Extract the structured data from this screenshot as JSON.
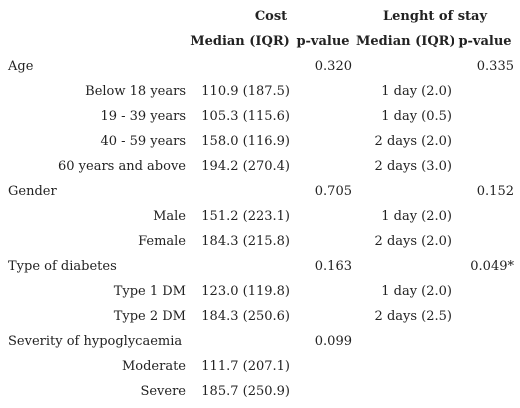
{
  "header": {
    "cost": "Cost",
    "los": "Lenght of stay",
    "median_iqr": "Median (IQR)",
    "p_value": "p-value"
  },
  "rows": [
    {
      "kind": "cat",
      "label": "Age",
      "cost_med": "",
      "cost_p": "0.320",
      "los_med": "",
      "los_p": "0.335"
    },
    {
      "kind": "sub",
      "label": "Below 18 years",
      "cost_med": "110.9 (187.5)",
      "cost_p": "",
      "los_med": "1 day (2.0)",
      "los_p": ""
    },
    {
      "kind": "sub",
      "label": "19 - 39 years",
      "cost_med": "105.3 (115.6)",
      "cost_p": "",
      "los_med": "1 day (0.5)",
      "los_p": ""
    },
    {
      "kind": "sub",
      "label": "40 - 59 years",
      "cost_med": "158.0 (116.9)",
      "cost_p": "",
      "los_med": "2 days (2.0)",
      "los_p": ""
    },
    {
      "kind": "sub",
      "label": "60 years and above",
      "cost_med": "194.2 (270.4)",
      "cost_p": "",
      "los_med": "2 days (3.0)",
      "los_p": ""
    },
    {
      "kind": "cat",
      "label": "Gender",
      "cost_med": "",
      "cost_p": "0.705",
      "los_med": "",
      "los_p": "0.152"
    },
    {
      "kind": "sub",
      "label": "Male",
      "cost_med": "151.2 (223.1)",
      "cost_p": "",
      "los_med": "1 day (2.0)",
      "los_p": ""
    },
    {
      "kind": "sub",
      "label": "Female",
      "cost_med": "184.3 (215.8)",
      "cost_p": "",
      "los_med": "2 days (2.0)",
      "los_p": ""
    },
    {
      "kind": "cat",
      "label": "Type of diabetes",
      "cost_med": "",
      "cost_p": "0.163",
      "los_med": "",
      "los_p": "0.049*"
    },
    {
      "kind": "sub",
      "label": "Type 1 DM",
      "cost_med": "123.0 (119.8)",
      "cost_p": "",
      "los_med": "1 day (2.0)",
      "los_p": ""
    },
    {
      "kind": "sub",
      "label": "Type 2 DM",
      "cost_med": "184.3 (250.6)",
      "cost_p": "",
      "los_med": "2 days (2.5)",
      "los_p": ""
    },
    {
      "kind": "cat",
      "label": "Severity of hypoglycaemia",
      "cost_med": "",
      "cost_p": "0.099",
      "los_med": "",
      "los_p": ""
    },
    {
      "kind": "sub",
      "label": "Moderate",
      "cost_med": "111.7 (207.1)",
      "cost_p": "",
      "los_med": "",
      "los_p": ""
    },
    {
      "kind": "sub",
      "label": "Severe",
      "cost_med": "185.7 (250.9)",
      "cost_p": "",
      "los_med": "",
      "los_p": ""
    }
  ]
}
